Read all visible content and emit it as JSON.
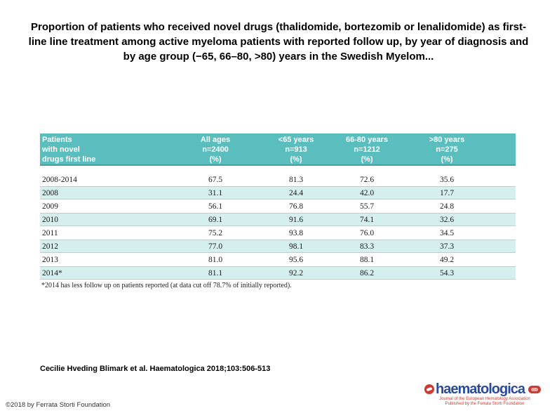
{
  "slide": {
    "title": "Proportion of patients who received novel drugs (thalidomide, bortezomib or lenalidomide) as first-line line treatment among active myeloma patients with reported follow up, by year of diagnosis and by age group (−65, 66–80, >80) years in the Swedish Myelom...",
    "footnote": "*2014 has less follow up on patients reported (at data cut off 78.7% of initially reported).",
    "citation": "Cecilie Hveding Blimark et al. Haematologica 2018;103:506-513",
    "copyright": "©2018 by Ferrata Storti Foundation"
  },
  "table": {
    "row_header_lines": [
      "Patients",
      "with novel",
      "drugs first line"
    ],
    "columns": [
      {
        "label": "All ages",
        "n": "n=2400",
        "unit": "(%)"
      },
      {
        "label": "<65 years",
        "n": "n=913",
        "unit": "(%)"
      },
      {
        "label": "66-80 years",
        "n": "n=1212",
        "unit": "(%)"
      },
      {
        "label": ">80 years",
        "n": "n=275",
        "unit": "(%)"
      }
    ],
    "rows": [
      {
        "year": "2008-2014",
        "values": [
          "67.5",
          "81.3",
          "72.6",
          "35.6"
        ]
      },
      {
        "year": "2008",
        "values": [
          "31.1",
          "24.4",
          "42.0",
          "17.7"
        ]
      },
      {
        "year": "2009",
        "values": [
          "56.1",
          "76.8",
          "55.7",
          "24.8"
        ]
      },
      {
        "year": "2010",
        "values": [
          "69.1",
          "91.6",
          "74.1",
          "32.6"
        ]
      },
      {
        "year": "2011",
        "values": [
          "75.2",
          "93.8",
          "76.0",
          "34.5"
        ]
      },
      {
        "year": "2012",
        "values": [
          "77.0",
          "98.1",
          "83.3",
          "37.3"
        ]
      },
      {
        "year": "2013",
        "values": [
          "81.0",
          "95.6",
          "88.1",
          "49.2"
        ]
      },
      {
        "year": "2014*",
        "values": [
          "81.1",
          "92.2",
          "86.2",
          "54.3"
        ]
      }
    ],
    "colors": {
      "header_bg": "#5abdbe",
      "header_text": "#ffffff",
      "stripe_bg": "#d5efee"
    }
  },
  "logo": {
    "wordmark": "haematologica",
    "tagline1": "Journal of the European Hematology Association",
    "tagline2": "Published by the Ferrata Storti Foundation",
    "blue": "#2a4b9b",
    "accent": "#c93b34"
  },
  "chart_data": {
    "type": "table",
    "title": "Proportion of patients who received novel drugs (thalidomide, bortezomib or lenalidomide) as first-line treatment among active myeloma patients, by year of diagnosis and age group",
    "columns": [
      "Patients with novel drugs first line",
      "All ages n=2400 (%)",
      "<65 years n=913 (%)",
      "66-80 years n=1212 (%)",
      ">80 years n=275 (%)"
    ],
    "rows": [
      [
        "2008-2014",
        67.5,
        81.3,
        72.6,
        35.6
      ],
      [
        "2008",
        31.1,
        24.4,
        42.0,
        17.7
      ],
      [
        "2009",
        56.1,
        76.8,
        55.7,
        24.8
      ],
      [
        "2010",
        69.1,
        91.6,
        74.1,
        32.6
      ],
      [
        "2011",
        75.2,
        93.8,
        76.0,
        34.5
      ],
      [
        "2012",
        77.0,
        98.1,
        83.3,
        37.3
      ],
      [
        "2013",
        81.0,
        95.6,
        88.1,
        49.2
      ],
      [
        "2014*",
        81.1,
        92.2,
        86.2,
        54.3
      ]
    ],
    "footnote": "*2014 has less follow up on patients reported (at data cut off 78.7% of initially reported)."
  }
}
